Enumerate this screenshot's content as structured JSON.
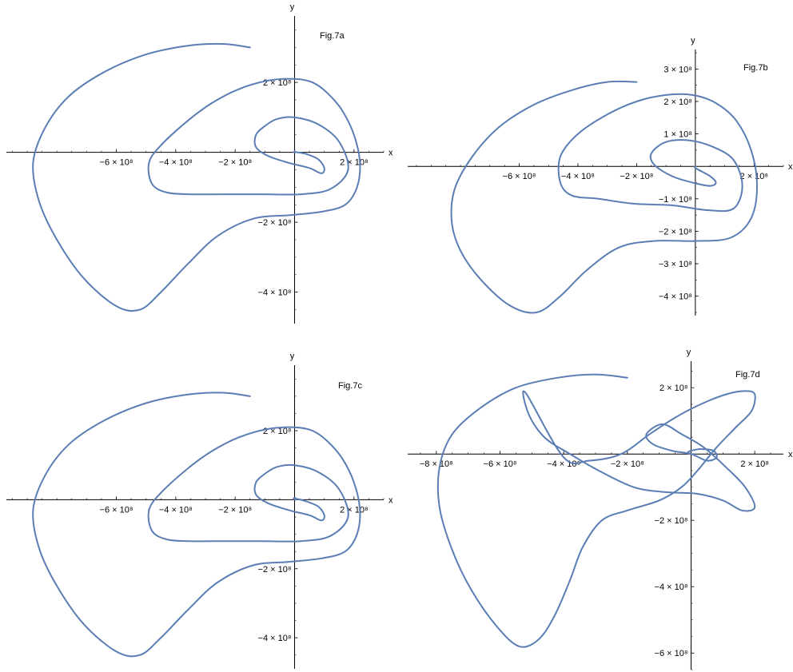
{
  "colors": {
    "curve": "#5a7eb4",
    "axis": "#000000",
    "background": "#ffffff"
  },
  "chart_data": [
    {
      "type": "line",
      "title": "Fig.7a",
      "xlabel": "x",
      "ylabel": "y",
      "xlim": [
        -970000000.0,
        300000000.0
      ],
      "ylim": [
        -490000000.0,
        390000000.0
      ],
      "x_ticks": [
        {
          "v": -600000000.0,
          "label": "−6 × 10⁸"
        },
        {
          "v": -400000000.0,
          "label": "−4 × 10⁸"
        },
        {
          "v": -200000000.0,
          "label": "−2 × 10⁸"
        },
        {
          "v": 200000000.0,
          "label": "2 × 10⁸"
        }
      ],
      "y_ticks": [
        {
          "v": 200000000.0,
          "label": "2 × 10⁸"
        },
        {
          "v": -200000000.0,
          "label": "−2 × 10⁸"
        },
        {
          "v": -400000000.0,
          "label": "−4 × 10⁸"
        }
      ],
      "series": [
        {
          "x": [
            -150000000.0,
            -240000000.0,
            -360000000.0,
            -500000000.0,
            -640000000.0,
            -760000000.0,
            -840000000.0,
            -880000000.0,
            -860000000.0,
            -800000000.0,
            -710000000.0,
            -600000000.0,
            -520000000.0,
            -450000000.0,
            -360000000.0,
            -260000000.0,
            -140000000.0,
            -20000000.0,
            90000000.0,
            170000000.0,
            210000000.0,
            220000000.0,
            200000000.0,
            160000000.0,
            110000000.0,
            60000000.0,
            0.0,
            -90000000.0,
            -190000000.0,
            -280000000.0,
            -360000000.0,
            -450000000.0,
            -490000000.0,
            -480000000.0,
            -430000000.0,
            -350000000.0,
            -240000000.0,
            -110000000.0,
            20000000.0,
            120000000.0,
            180000000.0,
            150000000.0,
            80000000.0,
            0.0,
            -60000000.0,
            -100000000.0,
            -130000000.0,
            -130000000.0,
            -90000000.0,
            -20000000.0,
            50000000.0,
            90000000.0,
            100000000.0,
            80000000.0,
            40000000.0,
            10000000.0,
            0.0,
            2000000.0,
            0.0,
            -2000000.0
          ],
          "y": [
            300000000.0,
            310000000.0,
            305000000.0,
            280000000.0,
            230000000.0,
            160000000.0,
            70000000.0,
            -30000000.0,
            -140000000.0,
            -250000000.0,
            -360000000.0,
            -440000000.0,
            -450000000.0,
            -400000000.0,
            -320000000.0,
            -240000000.0,
            -190000000.0,
            -180000000.0,
            -170000000.0,
            -150000000.0,
            -100000000.0,
            -30000000.0,
            50000000.0,
            120000000.0,
            170000000.0,
            200000000.0,
            210000000.0,
            205000000.0,
            180000000.0,
            140000000.0,
            90000000.0,
            20000000.0,
            -30000000.0,
            -90000000.0,
            -115000000.0,
            -120000000.0,
            -120000000.0,
            -120000000.0,
            -120000000.0,
            -105000000.0,
            -50000000.0,
            30000000.0,
            80000000.0,
            100000000.0,
            95000000.0,
            75000000.0,
            50000000.0,
            15000000.0,
            -10000000.0,
            -30000000.0,
            -45000000.0,
            -60000000.0,
            -45000000.0,
            -20000000.0,
            -5000000.0,
            0.0,
            0.0,
            2000000.0,
            3000000.0,
            0.0
          ]
        }
      ]
    },
    {
      "type": "line",
      "title": "Fig.7b",
      "xlabel": "x",
      "ylabel": "y",
      "xlim": [
        -980000000.0,
        300000000.0
      ],
      "ylim": [
        -460000000.0,
        360000000.0
      ],
      "x_ticks": [
        {
          "v": -600000000.0,
          "label": "−6 × 10⁸"
        },
        {
          "v": -400000000.0,
          "label": "−4 × 10⁸"
        },
        {
          "v": -200000000.0,
          "label": "−2 × 10⁸"
        },
        {
          "v": 200000000.0,
          "label": "2 × 10⁸"
        }
      ],
      "y_ticks": [
        {
          "v": 300000000.0,
          "label": "3 × 10⁸"
        },
        {
          "v": 200000000.0,
          "label": "2 × 10⁸"
        },
        {
          "v": 100000000.0,
          "label": "1 × 10⁸"
        },
        {
          "v": -100000000.0,
          "label": "−1 × 10⁸"
        },
        {
          "v": -200000000.0,
          "label": "−2 × 10⁸"
        },
        {
          "v": -300000000.0,
          "label": "−3 × 10⁸"
        },
        {
          "v": -400000000.0,
          "label": "−4 × 10⁸"
        }
      ],
      "series": [
        {
          "x": [
            -200000000.0,
            -300000000.0,
            -420000000.0,
            -550000000.0,
            -670000000.0,
            -760000000.0,
            -820000000.0,
            -830000000.0,
            -800000000.0,
            -730000000.0,
            -630000000.0,
            -540000000.0,
            -460000000.0,
            -370000000.0,
            -260000000.0,
            -140000000.0,
            0.0,
            120000000.0,
            190000000.0,
            210000000.0,
            190000000.0,
            140000000.0,
            70000000.0,
            -10000000.0,
            -100000000.0,
            -200000000.0,
            -300000000.0,
            -400000000.0,
            -460000000.0,
            -460000000.0,
            -420000000.0,
            -330000000.0,
            -210000000.0,
            -80000000.0,
            40000000.0,
            130000000.0,
            160000000.0,
            130000000.0,
            60000000.0,
            -20000000.0,
            -100000000.0,
            -150000000.0,
            -140000000.0,
            -80000000.0,
            -10000000.0,
            50000000.0,
            70000000.0,
            50000000.0,
            20000000.0,
            0.0,
            0.0,
            2000000.0
          ],
          "y": [
            260000000.0,
            260000000.0,
            235000000.0,
            190000000.0,
            120000000.0,
            30000000.0,
            -70000000.0,
            -170000000.0,
            -260000000.0,
            -350000000.0,
            -430000000.0,
            -450000000.0,
            -400000000.0,
            -320000000.0,
            -250000000.0,
            -230000000.0,
            -230000000.0,
            -220000000.0,
            -160000000.0,
            -60000000.0,
            50000000.0,
            140000000.0,
            195000000.0,
            220000000.0,
            220000000.0,
            200000000.0,
            160000000.0,
            100000000.0,
            30000000.0,
            -50000000.0,
            -90000000.0,
            -100000000.0,
            -115000000.0,
            -120000000.0,
            -135000000.0,
            -130000000.0,
            -60000000.0,
            20000000.0,
            60000000.0,
            80000000.0,
            75000000.0,
            40000000.0,
            5000000.0,
            -30000000.0,
            -50000000.0,
            -60000000.0,
            -50000000.0,
            -30000000.0,
            -15000000.0,
            -5000000.0,
            0.0,
            0.0
          ]
        }
      ]
    },
    {
      "type": "line",
      "title": "Fig.7c",
      "xlabel": "x",
      "ylabel": "y",
      "xlim": [
        -970000000.0,
        300000000.0
      ],
      "ylim": [
        -490000000.0,
        390000000.0
      ],
      "x_ticks": [
        {
          "v": -600000000.0,
          "label": "−6 × 10⁸"
        },
        {
          "v": -400000000.0,
          "label": "−4 × 10⁸"
        },
        {
          "v": -200000000.0,
          "label": "−2 × 10⁸"
        },
        {
          "v": 200000000.0,
          "label": "2 × 10⁸"
        }
      ],
      "y_ticks": [
        {
          "v": 200000000.0,
          "label": "2 × 10⁸"
        },
        {
          "v": -200000000.0,
          "label": "−2 × 10⁸"
        },
        {
          "v": -400000000.0,
          "label": "−4 × 10⁸"
        }
      ],
      "series": [
        {
          "x": [
            -150000000.0,
            -240000000.0,
            -360000000.0,
            -500000000.0,
            -640000000.0,
            -760000000.0,
            -840000000.0,
            -880000000.0,
            -860000000.0,
            -800000000.0,
            -710000000.0,
            -600000000.0,
            -520000000.0,
            -450000000.0,
            -360000000.0,
            -260000000.0,
            -140000000.0,
            -20000000.0,
            90000000.0,
            170000000.0,
            210000000.0,
            220000000.0,
            200000000.0,
            160000000.0,
            110000000.0,
            60000000.0,
            0.0,
            -90000000.0,
            -190000000.0,
            -280000000.0,
            -360000000.0,
            -450000000.0,
            -490000000.0,
            -480000000.0,
            -430000000.0,
            -350000000.0,
            -240000000.0,
            -110000000.0,
            20000000.0,
            120000000.0,
            180000000.0,
            150000000.0,
            80000000.0,
            0.0,
            -60000000.0,
            -100000000.0,
            -130000000.0,
            -130000000.0,
            -90000000.0,
            -20000000.0,
            50000000.0,
            90000000.0,
            100000000.0,
            80000000.0,
            40000000.0,
            10000000.0,
            -3000000.0,
            0.0,
            5000000.0,
            2000000.0
          ],
          "y": [
            300000000.0,
            310000000.0,
            305000000.0,
            280000000.0,
            230000000.0,
            160000000.0,
            70000000.0,
            -30000000.0,
            -140000000.0,
            -250000000.0,
            -360000000.0,
            -440000000.0,
            -450000000.0,
            -400000000.0,
            -320000000.0,
            -240000000.0,
            -190000000.0,
            -180000000.0,
            -170000000.0,
            -150000000.0,
            -100000000.0,
            -30000000.0,
            50000000.0,
            120000000.0,
            170000000.0,
            200000000.0,
            210000000.0,
            205000000.0,
            180000000.0,
            140000000.0,
            90000000.0,
            20000000.0,
            -30000000.0,
            -90000000.0,
            -115000000.0,
            -120000000.0,
            -120000000.0,
            -120000000.0,
            -120000000.0,
            -105000000.0,
            -50000000.0,
            30000000.0,
            80000000.0,
            100000000.0,
            95000000.0,
            75000000.0,
            50000000.0,
            15000000.0,
            -10000000.0,
            -30000000.0,
            -45000000.0,
            -60000000.0,
            -45000000.0,
            -20000000.0,
            -5000000.0,
            2000000.0,
            2000000.0,
            6000000.0,
            3000000.0,
            0.0
          ]
        }
      ]
    },
    {
      "type": "line",
      "title": "Fig.7d",
      "xlabel": "x",
      "ylabel": "y",
      "xlim": [
        -890000000.0,
        290000000.0
      ],
      "ylim": [
        -650000000.0,
        280000000.0
      ],
      "x_ticks": [
        {
          "v": -800000000.0,
          "label": "−8 × 10⁸"
        },
        {
          "v": -600000000.0,
          "label": "−6 × 10⁸"
        },
        {
          "v": -400000000.0,
          "label": "−4 × 10⁸"
        },
        {
          "v": -200000000.0,
          "label": "−2 × 10⁸"
        },
        {
          "v": 200000000.0,
          "label": "2 × 10⁸"
        }
      ],
      "y_ticks": [
        {
          "v": 200000000.0,
          "label": "2 × 10⁸"
        },
        {
          "v": -200000000.0,
          "label": "−2 × 10⁸"
        },
        {
          "v": -400000000.0,
          "label": "−4 × 10⁸"
        },
        {
          "v": -600000000.0,
          "label": "−6 × 10⁸"
        }
      ],
      "series": [
        {
          "x": [
            -200000000.0,
            -300000000.0,
            -420000000.0,
            -550000000.0,
            -660000000.0,
            -750000000.0,
            -790000000.0,
            -790000000.0,
            -750000000.0,
            -690000000.0,
            -610000000.0,
            -540000000.0,
            -480000000.0,
            -430000000.0,
            -380000000.0,
            -340000000.0,
            -280000000.0,
            -200000000.0,
            -100000000.0,
            -30000000.0,
            20000000.0,
            80000000.0,
            140000000.0,
            190000000.0,
            200000000.0,
            170000000.0,
            110000000.0,
            30000000.0,
            -50000000.0,
            -130000000.0,
            -220000000.0,
            -320000000.0,
            -400000000.0,
            -520000000.0,
            -510000000.0,
            -460000000.0,
            -380000000.0,
            -290000000.0,
            -180000000.0,
            -80000000.0,
            20000000.0,
            100000000.0,
            160000000.0,
            200000000.0,
            170000000.0,
            110000000.0,
            40000000.0,
            -30000000.0,
            -90000000.0,
            -140000000.0,
            -120000000.0,
            -60000000.0,
            0.0,
            50000000.0,
            80000000.0,
            70000000.0,
            30000000.0,
            0.0,
            -10000000.0,
            0.0,
            10000000.0
          ],
          "y": [
            230000000.0,
            240000000.0,
            230000000.0,
            200000000.0,
            140000000.0,
            60000000.0,
            -40000000.0,
            -160000000.0,
            -290000000.0,
            -410000000.0,
            -520000000.0,
            -580000000.0,
            -560000000.0,
            -490000000.0,
            -380000000.0,
            -280000000.0,
            -200000000.0,
            -170000000.0,
            -140000000.0,
            -100000000.0,
            -50000000.0,
            20000000.0,
            80000000.0,
            130000000.0,
            180000000.0,
            190000000.0,
            180000000.0,
            150000000.0,
            110000000.0,
            60000000.0,
            0.0,
            -20000000.0,
            -10000000.0,
            185000000.0,
            120000000.0,
            50000000.0,
            0.0,
            -50000000.0,
            -100000000.0,
            -115000000.0,
            -120000000.0,
            -140000000.0,
            -170000000.0,
            -160000000.0,
            -100000000.0,
            -40000000.0,
            20000000.0,
            60000000.0,
            90000000.0,
            60000000.0,
            30000000.0,
            10000000.0,
            0.0,
            -20000000.0,
            -10000000.0,
            10000000.0,
            15000000.0,
            10000000.0,
            5000000.0,
            0.0,
            0.0
          ]
        }
      ]
    }
  ]
}
